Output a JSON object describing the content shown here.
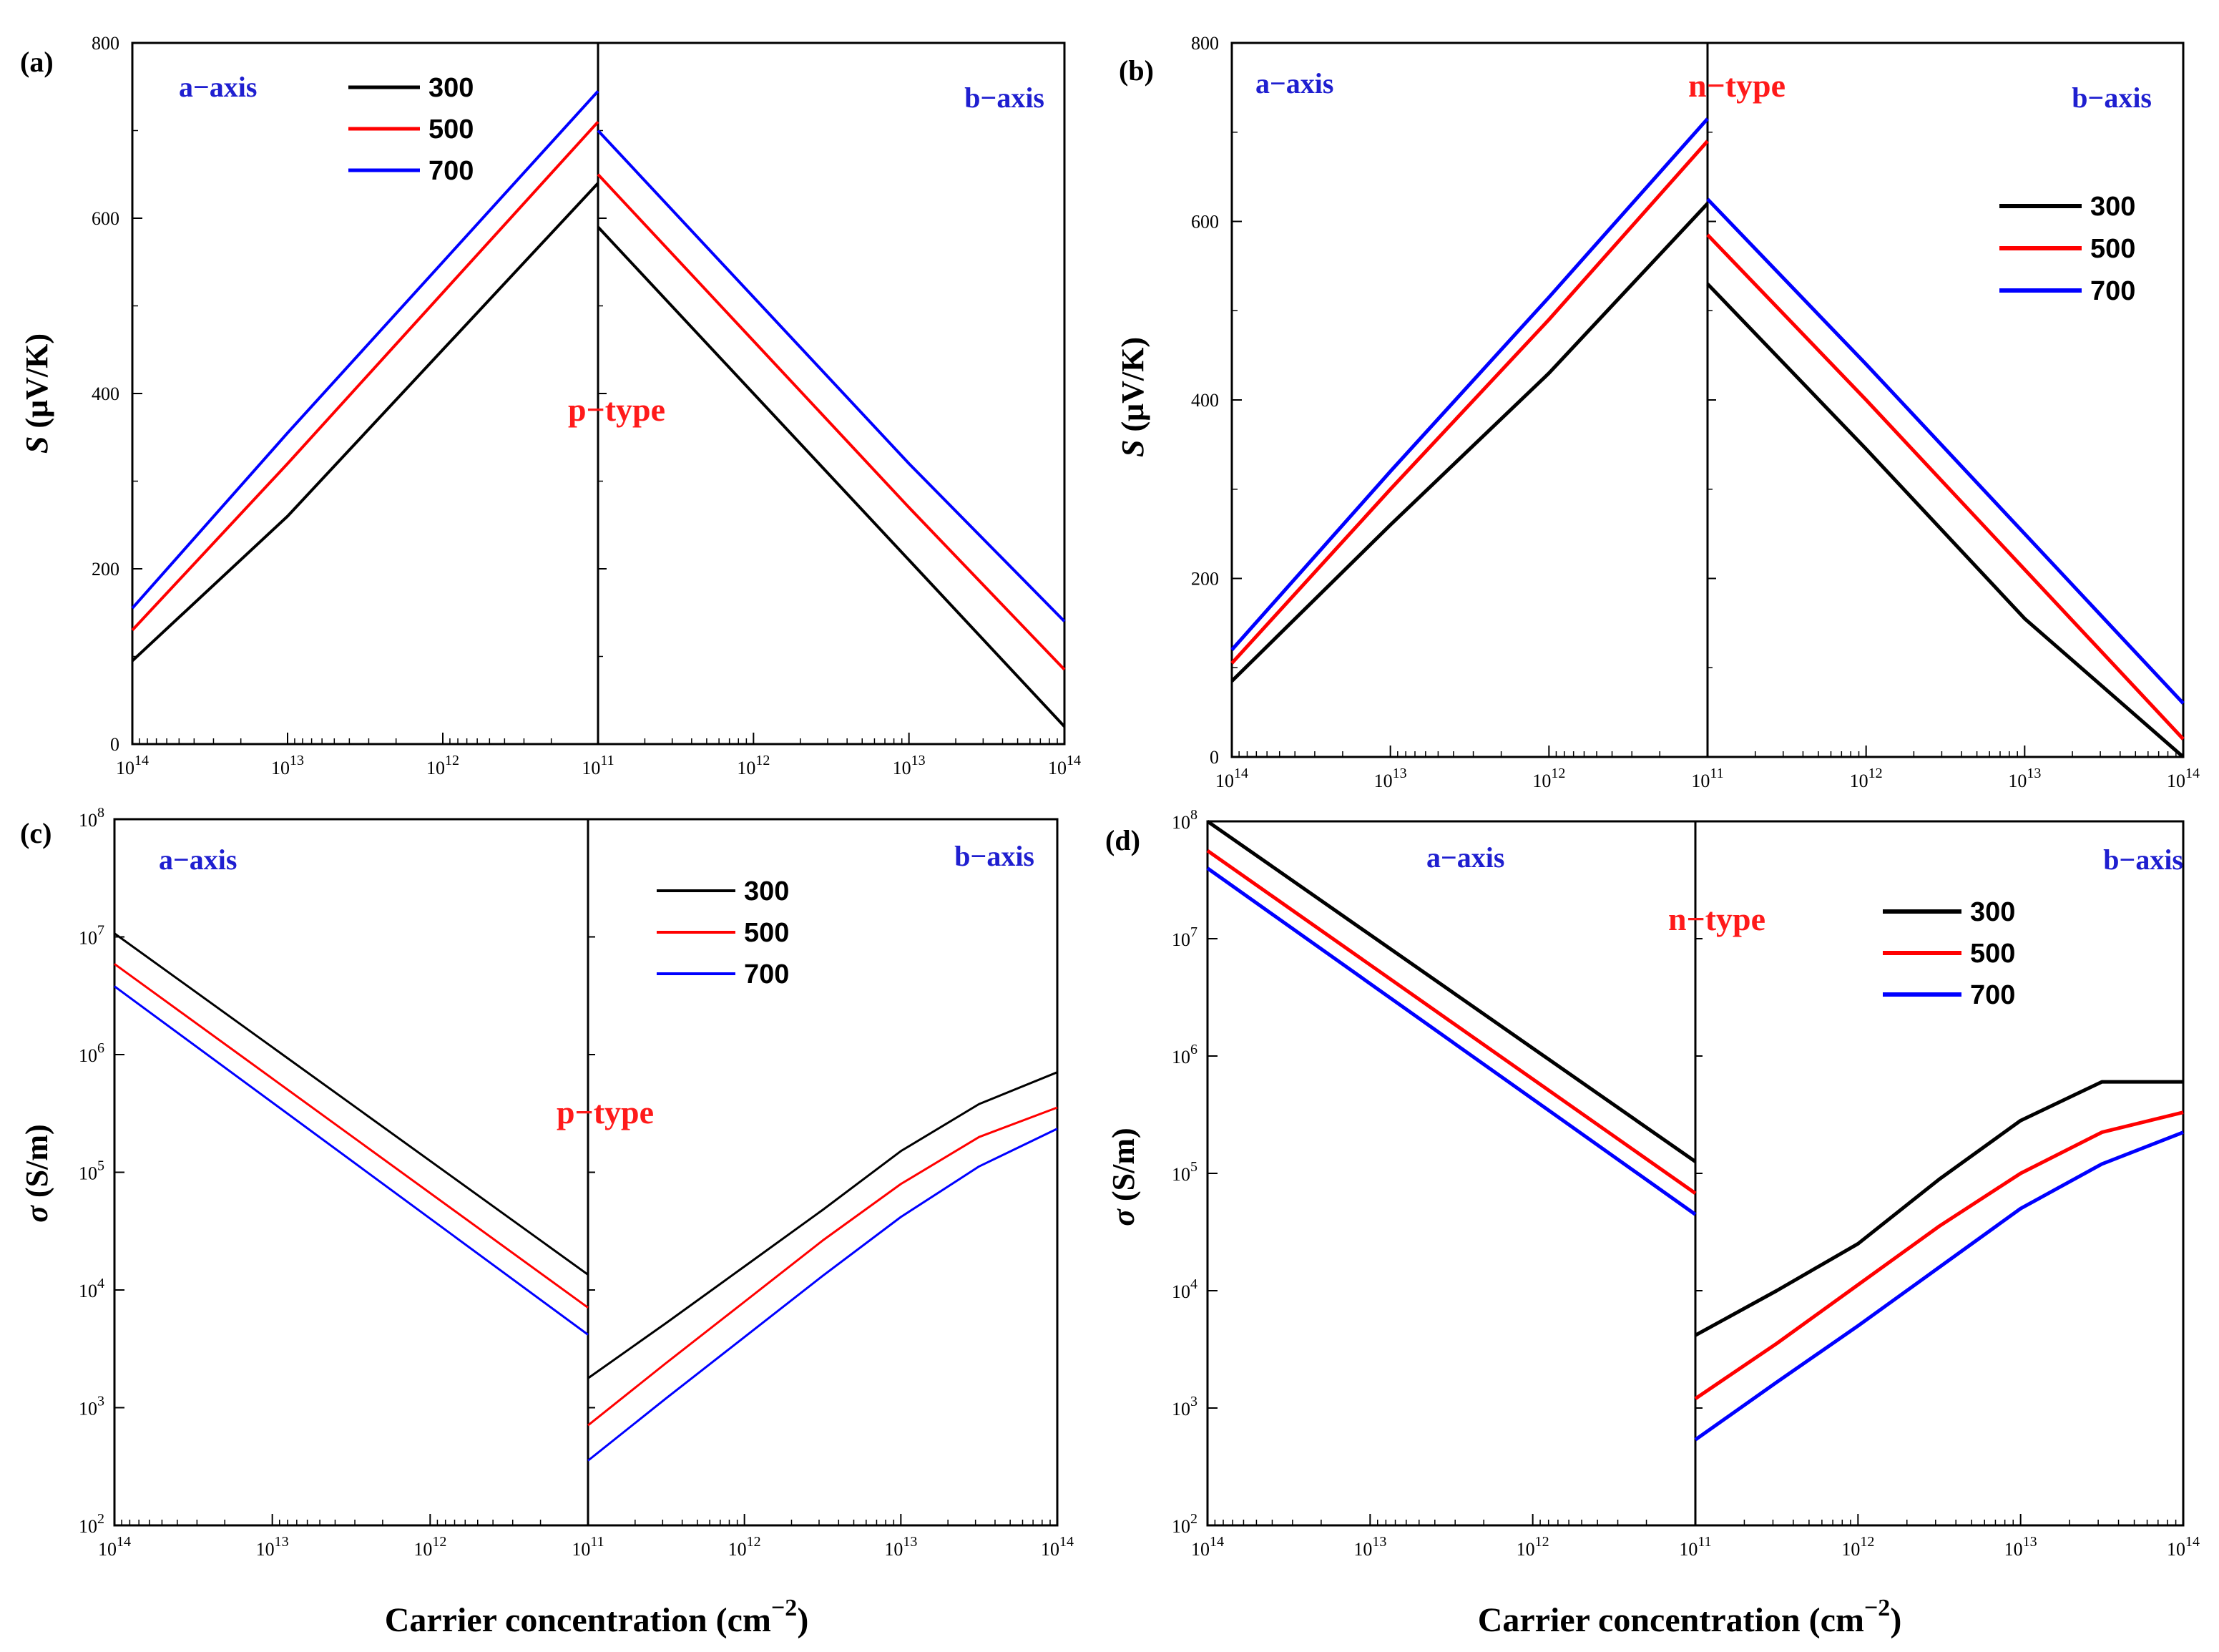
{
  "figure": {
    "xlabel": "Carrier concentration (cm",
    "xlabel_sup": "−2",
    "xlabel_end": ")"
  },
  "chart_data": [
    {
      "panel": "(a)",
      "type": "line",
      "ylabel_italic": "S",
      "ylabel_rest": " (μV/K)",
      "yscale": "linear",
      "ylim": [
        0,
        800
      ],
      "yticks": [
        "0",
        "200",
        "400",
        "600",
        "800"
      ],
      "xscale": "log (mirrored: a-axis left 10^14→10^11, b-axis right 10^11→10^14)",
      "xticks": [
        {
          "base": "10",
          "exp": "14"
        },
        {
          "base": "10",
          "exp": "13"
        },
        {
          "base": "10",
          "exp": "12"
        },
        {
          "base": "10",
          "exp": "11"
        },
        {
          "base": "10",
          "exp": "12"
        },
        {
          "base": "10",
          "exp": "13"
        },
        {
          "base": "10",
          "exp": "14"
        }
      ],
      "left_label": "a−axis",
      "right_label": "b−axis",
      "type_label": "p−type",
      "legend": [
        "300",
        "500",
        "700"
      ],
      "legend_position": "top-left",
      "colors": [
        "#000000",
        "#ff0000",
        "#0000ff"
      ],
      "line_width": 4,
      "series": [
        {
          "name": "300",
          "a_axis": {
            "log_n": [
              14,
              13,
              12,
              11
            ],
            "S": [
              95,
              260,
              450,
              640
            ]
          },
          "b_axis": {
            "log_n": [
              11,
              12,
              13,
              14
            ],
            "S": [
              590,
              400,
              210,
              20
            ]
          }
        },
        {
          "name": "500",
          "a_axis": {
            "log_n": [
              14,
              13,
              12,
              11
            ],
            "S": [
              130,
              320,
              515,
              710
            ]
          },
          "b_axis": {
            "log_n": [
              11,
              12,
              13,
              14
            ],
            "S": [
              650,
              460,
              270,
              85
            ]
          }
        },
        {
          "name": "700",
          "a_axis": {
            "log_n": [
              14,
              13,
              12,
              11
            ],
            "S": [
              155,
              355,
              550,
              745
            ]
          },
          "b_axis": {
            "log_n": [
              11,
              12,
              13,
              14
            ],
            "S": [
              700,
              510,
              320,
              140
            ]
          }
        }
      ]
    },
    {
      "panel": "(b)",
      "type": "line",
      "ylabel_italic": "S",
      "ylabel_rest": " (μV/K)",
      "yscale": "linear",
      "ylim": [
        0,
        800
      ],
      "yticks": [
        "0",
        "200",
        "400",
        "600",
        "800"
      ],
      "xscale": "log (mirrored)",
      "xticks": [
        {
          "base": "10",
          "exp": "14"
        },
        {
          "base": "10",
          "exp": "13"
        },
        {
          "base": "10",
          "exp": "12"
        },
        {
          "base": "10",
          "exp": "11"
        },
        {
          "base": "10",
          "exp": "12"
        },
        {
          "base": "10",
          "exp": "13"
        },
        {
          "base": "10",
          "exp": "14"
        }
      ],
      "left_label": "a−axis",
      "right_label": "b−axis",
      "type_label": "n−type",
      "legend": [
        "300",
        "500",
        "700"
      ],
      "legend_position": "right",
      "colors": [
        "#000000",
        "#ff0000",
        "#0000ff"
      ],
      "line_width": 5,
      "series": [
        {
          "name": "300",
          "a_axis": {
            "log_n": [
              14,
              13,
              12,
              11
            ],
            "S": [
              85,
              260,
              430,
              620
            ]
          },
          "b_axis": {
            "log_n": [
              11,
              12,
              13,
              14
            ],
            "S": [
              530,
              345,
              155,
              0
            ]
          }
        },
        {
          "name": "500",
          "a_axis": {
            "log_n": [
              14,
              13,
              12,
              11
            ],
            "S": [
              105,
              300,
              490,
              690
            ]
          },
          "b_axis": {
            "log_n": [
              11,
              12,
              13,
              14
            ],
            "S": [
              585,
              400,
              210,
              20
            ]
          }
        },
        {
          "name": "700",
          "a_axis": {
            "log_n": [
              14,
              13,
              12,
              11
            ],
            "S": [
              120,
              320,
              515,
              715
            ]
          },
          "b_axis": {
            "log_n": [
              11,
              12,
              13,
              14
            ],
            "S": [
              625,
              440,
              250,
              60
            ]
          }
        }
      ]
    },
    {
      "panel": "(c)",
      "type": "line",
      "ylabel_italic": "σ",
      "ylabel_rest": "  (S/m)",
      "yscale": "log",
      "ylim": [
        "1e2",
        "1e8"
      ],
      "yticks": [
        {
          "base": "10",
          "exp": "2"
        },
        {
          "base": "10",
          "exp": "3"
        },
        {
          "base": "10",
          "exp": "4"
        },
        {
          "base": "10",
          "exp": "5"
        },
        {
          "base": "10",
          "exp": "6"
        },
        {
          "base": "10",
          "exp": "7"
        },
        {
          "base": "10",
          "exp": "8"
        }
      ],
      "xscale": "log (mirrored)",
      "xticks": [
        {
          "base": "10",
          "exp": "14"
        },
        {
          "base": "10",
          "exp": "13"
        },
        {
          "base": "10",
          "exp": "12"
        },
        {
          "base": "10",
          "exp": "11"
        },
        {
          "base": "10",
          "exp": "12"
        },
        {
          "base": "10",
          "exp": "13"
        },
        {
          "base": "10",
          "exp": "14"
        }
      ],
      "left_label": "a−axis",
      "right_label": "b−axis",
      "type_label": "p−type",
      "legend": [
        "300",
        "500",
        "700"
      ],
      "legend_position": "top-right",
      "colors": [
        "#000000",
        "#ff0000",
        "#0000ff"
      ],
      "line_width": 3,
      "series": [
        {
          "name": "300",
          "a_axis": {
            "log_n": [
              14,
              11
            ],
            "log_sigma": [
              7.03,
              4.13
            ]
          },
          "b_axis": {
            "log_n": [
              11,
              11.5,
              12,
              12.5,
              13,
              13.5,
              14
            ],
            "log_sigma": [
              3.25,
              3.72,
              4.2,
              4.68,
              5.18,
              5.58,
              5.85
            ]
          }
        },
        {
          "name": "500",
          "a_axis": {
            "log_n": [
              14,
              11
            ],
            "log_sigma": [
              6.77,
              3.85
            ]
          },
          "b_axis": {
            "log_n": [
              11,
              11.5,
              12,
              12.5,
              13,
              13.5,
              14
            ],
            "log_sigma": [
              2.85,
              3.38,
              3.9,
              4.42,
              4.9,
              5.3,
              5.55
            ]
          }
        },
        {
          "name": "700",
          "a_axis": {
            "log_n": [
              14,
              11
            ],
            "log_sigma": [
              6.58,
              3.62
            ]
          },
          "b_axis": {
            "log_n": [
              11,
              11.5,
              12,
              12.5,
              13,
              13.5,
              14
            ],
            "log_sigma": [
              2.55,
              3.08,
              3.6,
              4.12,
              4.62,
              5.05,
              5.37
            ]
          }
        }
      ]
    },
    {
      "panel": "(d)",
      "type": "line",
      "ylabel_italic": "σ",
      "ylabel_rest": "  (S/m)",
      "yscale": "log",
      "ylim": [
        "1e2",
        "1e8"
      ],
      "yticks": [
        {
          "base": "10",
          "exp": "2"
        },
        {
          "base": "10",
          "exp": "3"
        },
        {
          "base": "10",
          "exp": "4"
        },
        {
          "base": "10",
          "exp": "5"
        },
        {
          "base": "10",
          "exp": "6"
        },
        {
          "base": "10",
          "exp": "7"
        },
        {
          "base": "10",
          "exp": "8"
        }
      ],
      "xscale": "log (mirrored)",
      "xticks": [
        {
          "base": "10",
          "exp": "14"
        },
        {
          "base": "10",
          "exp": "13"
        },
        {
          "base": "10",
          "exp": "12"
        },
        {
          "base": "10",
          "exp": "11"
        },
        {
          "base": "10",
          "exp": "12"
        },
        {
          "base": "10",
          "exp": "13"
        },
        {
          "base": "10",
          "exp": "14"
        }
      ],
      "left_label": "a−axis",
      "right_label": "b−axis",
      "type_label": "n−type",
      "legend": [
        "300",
        "500",
        "700"
      ],
      "legend_position": "top-right",
      "colors": [
        "#000000",
        "#ff0000",
        "#0000ff"
      ],
      "line_width": 5,
      "series": [
        {
          "name": "300",
          "a_axis": {
            "log_n": [
              14,
              11
            ],
            "log_sigma": [
              8.0,
              5.1
            ]
          },
          "b_axis": {
            "log_n": [
              11,
              11.5,
              12,
              12.5,
              13,
              13.5,
              14
            ],
            "log_sigma": [
              3.62,
              4.0,
              4.4,
              4.95,
              5.45,
              5.78,
              5.78
            ]
          }
        },
        {
          "name": "500",
          "a_axis": {
            "log_n": [
              14,
              11
            ],
            "log_sigma": [
              7.75,
              4.83
            ]
          },
          "b_axis": {
            "log_n": [
              11,
              11.5,
              12,
              12.5,
              13,
              13.5,
              14
            ],
            "log_sigma": [
              3.08,
              3.55,
              4.05,
              4.55,
              5.0,
              5.35,
              5.52
            ]
          }
        },
        {
          "name": "700",
          "a_axis": {
            "log_n": [
              14,
              11
            ],
            "log_sigma": [
              7.6,
              4.65
            ]
          },
          "b_axis": {
            "log_n": [
              11,
              11.5,
              12,
              12.5,
              13,
              13.5,
              14
            ],
            "log_sigma": [
              2.73,
              3.22,
              3.7,
              4.2,
              4.7,
              5.08,
              5.35
            ]
          }
        }
      ]
    }
  ]
}
